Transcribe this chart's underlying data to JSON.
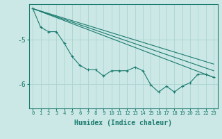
{
  "bg_color": "#cce8e6",
  "line_color": "#1a7a6e",
  "grid_color": "#aad4d0",
  "xlabel": "Humidex (Indice chaleur)",
  "xlabel_fontsize": 7,
  "yticks": [
    -6,
    -5
  ],
  "xlim": [
    -0.5,
    23.5
  ],
  "ylim": [
    -6.55,
    -4.2
  ],
  "line_series": [
    {
      "x": [
        0,
        1,
        2,
        3,
        4,
        5,
        6,
        7,
        8,
        9,
        10,
        11,
        12,
        13,
        14,
        15,
        16,
        17,
        18,
        19,
        20,
        21,
        22,
        23
      ],
      "y": [
        -4.3,
        -4.72,
        -4.82,
        -4.82,
        -5.08,
        -5.38,
        -5.58,
        -5.68,
        -5.68,
        -5.82,
        -5.7,
        -5.7,
        -5.7,
        -5.62,
        -5.7,
        -6.02,
        -6.18,
        -6.05,
        -6.18,
        -6.05,
        -5.97,
        -5.78,
        -5.78,
        -5.85
      ],
      "marker": true
    },
    {
      "x": [
        0,
        23
      ],
      "y": [
        -4.3,
        -5.85
      ],
      "marker": false
    },
    {
      "x": [
        0,
        23
      ],
      "y": [
        -4.3,
        -5.7
      ],
      "marker": false
    },
    {
      "x": [
        0,
        23
      ],
      "y": [
        -4.3,
        -5.55
      ],
      "marker": false
    }
  ]
}
